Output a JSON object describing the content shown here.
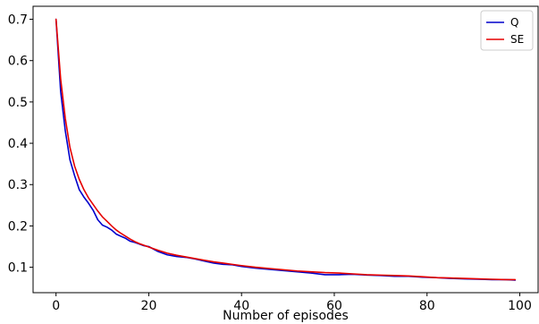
{
  "chart_data": {
    "type": "line",
    "title": "",
    "xlabel": "Number of episodes",
    "ylabel": "",
    "xlim": [
      -4.95,
      103.95
    ],
    "ylim": [
      0.0385,
      0.7315
    ],
    "x_ticks": [
      0,
      20,
      40,
      60,
      80,
      100
    ],
    "y_ticks": [
      0.1,
      0.2,
      0.3,
      0.4,
      0.5,
      0.6,
      0.7
    ],
    "grid": false,
    "legend": "top-right",
    "series": [
      {
        "name": "Q",
        "color": "#0000cc",
        "x": [
          0,
          1,
          2,
          3,
          4,
          5,
          6,
          7,
          8,
          9,
          10,
          11,
          12,
          13,
          14,
          15,
          16,
          17,
          18,
          19,
          20,
          22,
          24,
          26,
          28,
          30,
          32,
          34,
          36,
          38,
          40,
          43,
          46,
          49,
          52,
          55,
          58,
          61,
          64,
          67,
          70,
          73,
          76,
          79,
          82,
          85,
          88,
          91,
          94,
          97,
          99
        ],
        "y": [
          0.7,
          0.525,
          0.43,
          0.36,
          0.322,
          0.288,
          0.27,
          0.255,
          0.238,
          0.215,
          0.202,
          0.197,
          0.19,
          0.18,
          0.175,
          0.17,
          0.163,
          0.16,
          0.156,
          0.152,
          0.15,
          0.138,
          0.13,
          0.126,
          0.124,
          0.12,
          0.115,
          0.11,
          0.107,
          0.106,
          0.102,
          0.098,
          0.095,
          0.092,
          0.089,
          0.086,
          0.082,
          0.082,
          0.083,
          0.081,
          0.08,
          0.078,
          0.078,
          0.076,
          0.075,
          0.073,
          0.072,
          0.071,
          0.07,
          0.07,
          0.069
        ]
      },
      {
        "name": "SE",
        "color": "#e60000",
        "x": [
          0,
          1,
          2,
          3,
          4,
          5,
          6,
          7,
          8,
          9,
          10,
          11,
          12,
          13,
          14,
          15,
          16,
          17,
          18,
          19,
          20,
          22,
          24,
          26,
          28,
          30,
          32,
          34,
          36,
          38,
          40,
          43,
          46,
          49,
          52,
          55,
          58,
          61,
          64,
          67,
          70,
          73,
          76,
          79,
          82,
          85,
          88,
          91,
          94,
          97,
          99
        ],
        "y": [
          0.7,
          0.555,
          0.46,
          0.39,
          0.345,
          0.313,
          0.288,
          0.268,
          0.252,
          0.236,
          0.222,
          0.211,
          0.2,
          0.19,
          0.182,
          0.175,
          0.168,
          0.162,
          0.157,
          0.153,
          0.149,
          0.141,
          0.134,
          0.129,
          0.125,
          0.121,
          0.117,
          0.113,
          0.11,
          0.107,
          0.104,
          0.1,
          0.097,
          0.094,
          0.091,
          0.089,
          0.087,
          0.086,
          0.084,
          0.082,
          0.081,
          0.08,
          0.079,
          0.077,
          0.075,
          0.074,
          0.073,
          0.072,
          0.071,
          0.07,
          0.07
        ]
      }
    ]
  }
}
